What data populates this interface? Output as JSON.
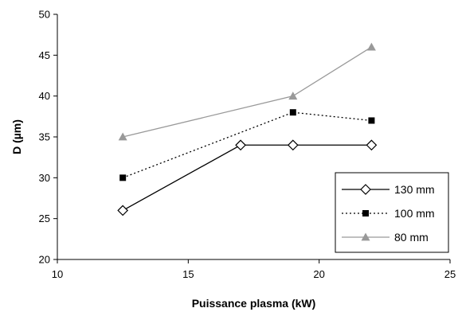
{
  "chart_data": {
    "type": "line",
    "title": "",
    "xlabel": "Puissance plasma (kW)",
    "ylabel": "D (µm)",
    "xlim": [
      10,
      25
    ],
    "ylim": [
      20,
      50
    ],
    "xticks": [
      10,
      15,
      20,
      25
    ],
    "yticks": [
      20,
      25,
      30,
      35,
      40,
      45,
      50
    ],
    "grid": false,
    "legend_position": "bottom-right",
    "series": [
      {
        "name": "130 mm",
        "x": [
          12.5,
          17,
          19,
          22
        ],
        "y": [
          26,
          34,
          34,
          34
        ],
        "color": "#000000",
        "line_style": "solid",
        "marker": "diamond-open"
      },
      {
        "name": "100 mm",
        "x": [
          12.5,
          19,
          22
        ],
        "y": [
          30,
          38,
          37
        ],
        "color": "#000000",
        "line_style": "dotted",
        "marker": "square-filled"
      },
      {
        "name": "80 mm",
        "x": [
          12.5,
          19,
          22
        ],
        "y": [
          35,
          40,
          46
        ],
        "color": "#999999",
        "line_style": "solid",
        "marker": "triangle-filled"
      }
    ]
  }
}
